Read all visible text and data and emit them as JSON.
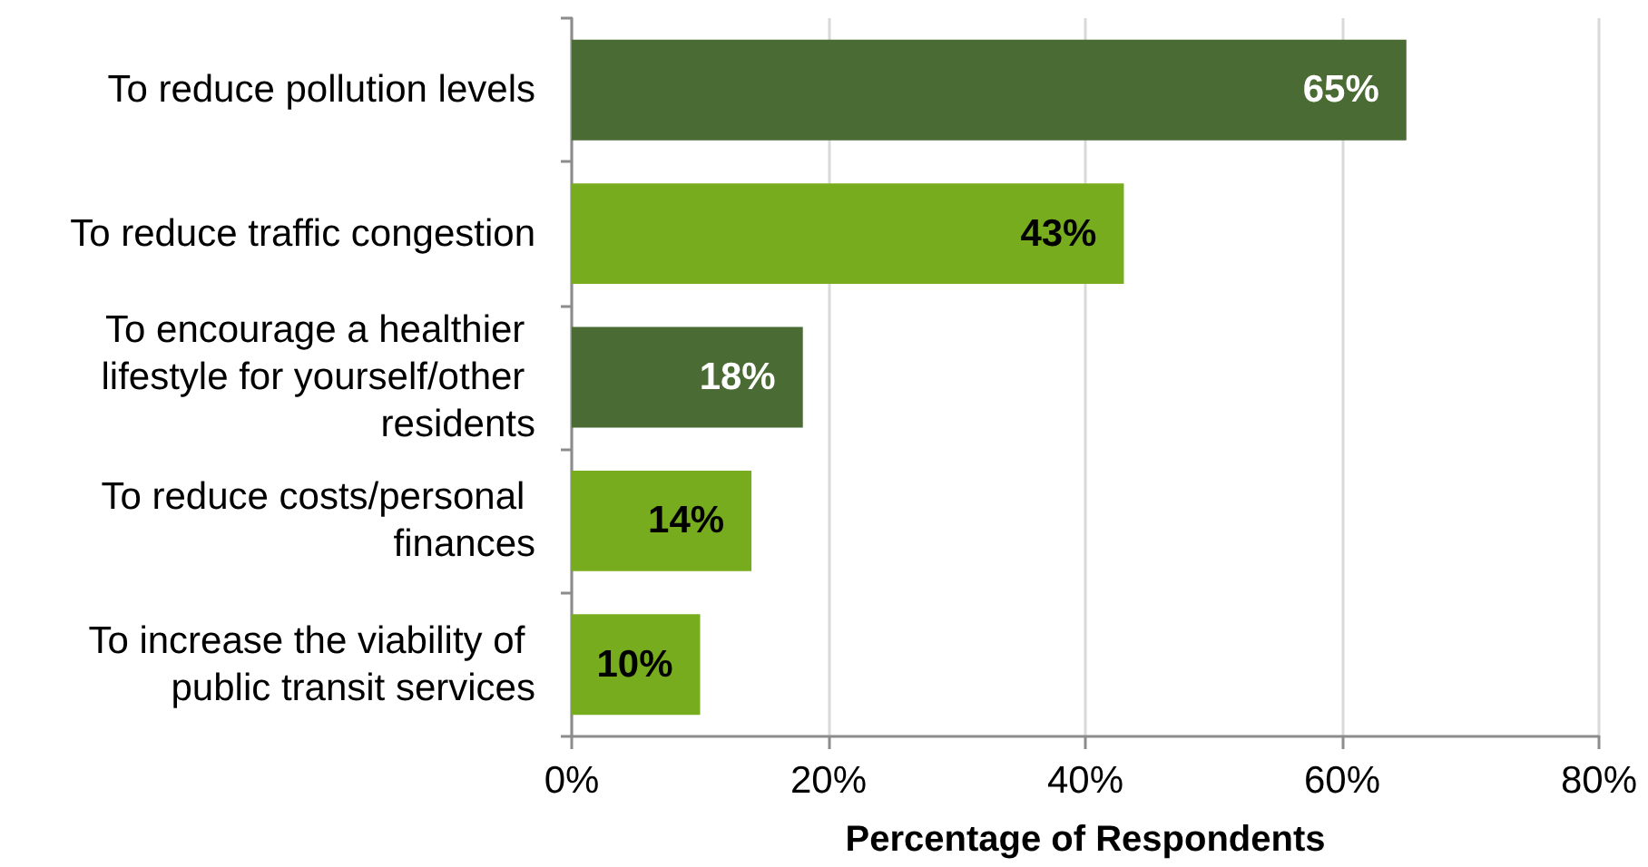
{
  "chart_data": {
    "type": "bar",
    "orientation": "horizontal",
    "xlabel": "Percentage of Respondents",
    "categories": [
      "To reduce pollution levels",
      "To reduce traffic congestion",
      "To encourage a healthier lifestyle for yourself/other residents",
      "To reduce costs/personal finances",
      "To increase the viability of public transit services"
    ],
    "values": [
      65,
      43,
      18,
      14,
      10
    ],
    "colors": [
      "#4a6b34",
      "#77ac1e",
      "#4a6b34",
      "#77ac1e",
      "#77ac1e"
    ],
    "value_labels": [
      "65%",
      "43%",
      "18%",
      "14%",
      "10%"
    ],
    "xlim": [
      0,
      80
    ],
    "xticks": [
      {
        "value": 0,
        "label": "0%"
      },
      {
        "value": 20,
        "label": "20%"
      },
      {
        "value": 40,
        "label": "40%"
      },
      {
        "value": 60,
        "label": "60%"
      },
      {
        "value": 80,
        "label": "80%"
      }
    ],
    "grid": "x"
  }
}
